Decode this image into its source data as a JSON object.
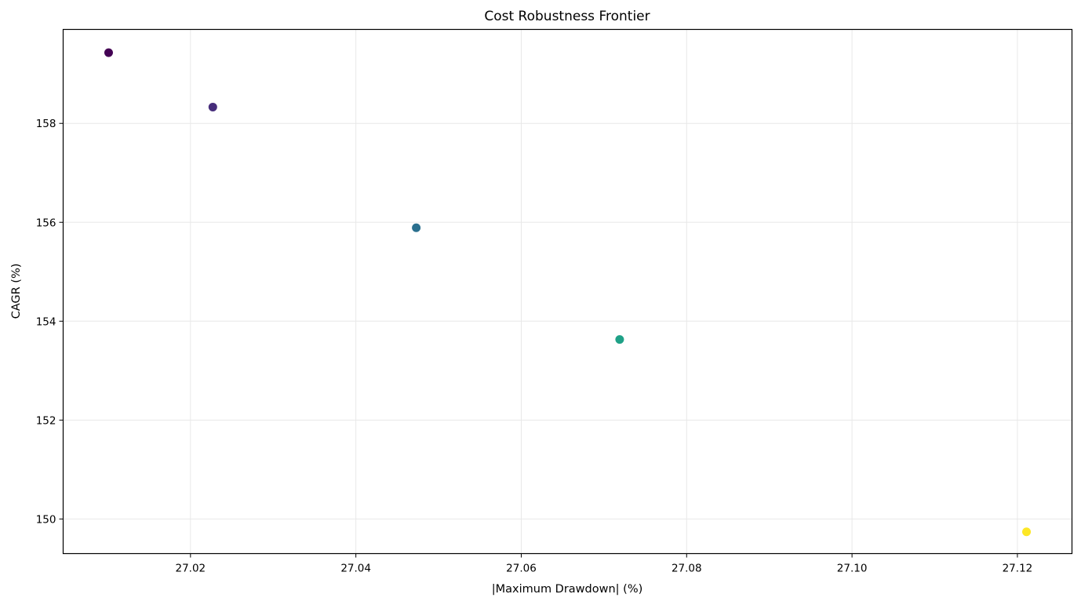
{
  "chart_data": {
    "type": "scatter",
    "title": "Cost Robustness Frontier",
    "xlabel": "|Maximum Drawdown| (%)",
    "ylabel": "CAGR (%)",
    "xlim": [
      27.0046,
      27.1266
    ],
    "ylim": [
      149.3,
      159.9
    ],
    "xticks": [
      27.02,
      27.04,
      27.06,
      27.08,
      27.1,
      27.12
    ],
    "xtick_labels": [
      "27.02",
      "27.04",
      "27.06",
      "27.08",
      "27.10",
      "27.12"
    ],
    "yticks": [
      150,
      152,
      154,
      156,
      158
    ],
    "ytick_labels": [
      "150",
      "152",
      "154",
      "156",
      "158"
    ],
    "grid": true,
    "points": [
      {
        "x": 27.0101,
        "y": 159.43,
        "color": "#440154"
      },
      {
        "x": 27.0227,
        "y": 158.33,
        "color": "#472d7b"
      },
      {
        "x": 27.0473,
        "y": 155.89,
        "color": "#2a6f8e"
      },
      {
        "x": 27.0719,
        "y": 153.63,
        "color": "#1fa187"
      },
      {
        "x": 27.1211,
        "y": 149.74,
        "color": "#fde725"
      }
    ]
  }
}
